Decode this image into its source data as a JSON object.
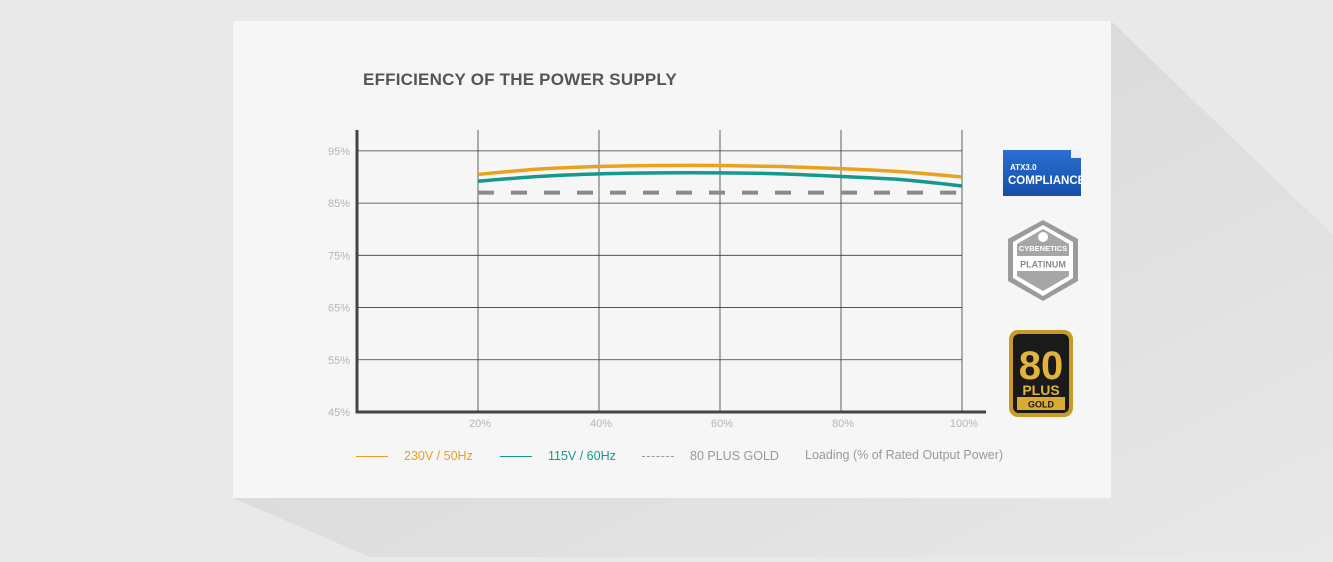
{
  "chart_data": {
    "type": "line",
    "title": "EFFICIENCY OF THE POWER SUPPLY",
    "xlabel": "Loading (% of Rated Output Power)",
    "ylabel": "",
    "x": [
      20,
      30,
      40,
      50,
      60,
      70,
      80,
      90,
      100
    ],
    "x_ticks": [
      "20%",
      "40%",
      "60%",
      "80%",
      "100%"
    ],
    "x_tick_values": [
      20,
      40,
      60,
      80,
      100
    ],
    "xlim": [
      0,
      100
    ],
    "y_ticks": [
      "95%",
      "85%",
      "75%",
      "65%",
      "55%",
      "45%"
    ],
    "y_tick_values": [
      95,
      85,
      75,
      65,
      55,
      45
    ],
    "ylim": [
      45,
      99
    ],
    "grid": true,
    "series": [
      {
        "name": "230V / 50Hz",
        "color": "#e8a21d",
        "style": "solid",
        "values": [
          90.5,
          91.5,
          92.0,
          92.2,
          92.2,
          92.0,
          91.6,
          91.0,
          90.0
        ]
      },
      {
        "name": "115V / 60Hz",
        "color": "#14998c",
        "style": "solid",
        "values": [
          89.2,
          90.1,
          90.6,
          90.8,
          90.8,
          90.6,
          90.1,
          89.5,
          88.3
        ]
      },
      {
        "name": "80 PLUS GOLD",
        "color": "#8a8a8a",
        "style": "dashed",
        "values": [
          87,
          87,
          87,
          87,
          87,
          87,
          87,
          87,
          87
        ]
      }
    ]
  },
  "legend": {
    "s230": "230V / 50Hz",
    "s115": "115V / 60Hz",
    "gold": "80 PLUS GOLD",
    "xlabel": "Loading (% of Rated Output Power)"
  },
  "badges": {
    "atx_top": "ATX3.0",
    "atx_main": "COMPLIANCE",
    "cyb_top": "CYBENETICS",
    "cyb_main": "PLATINUM",
    "plus_num": "80",
    "plus_word": "PLUS",
    "plus_tier": "GOLD"
  }
}
